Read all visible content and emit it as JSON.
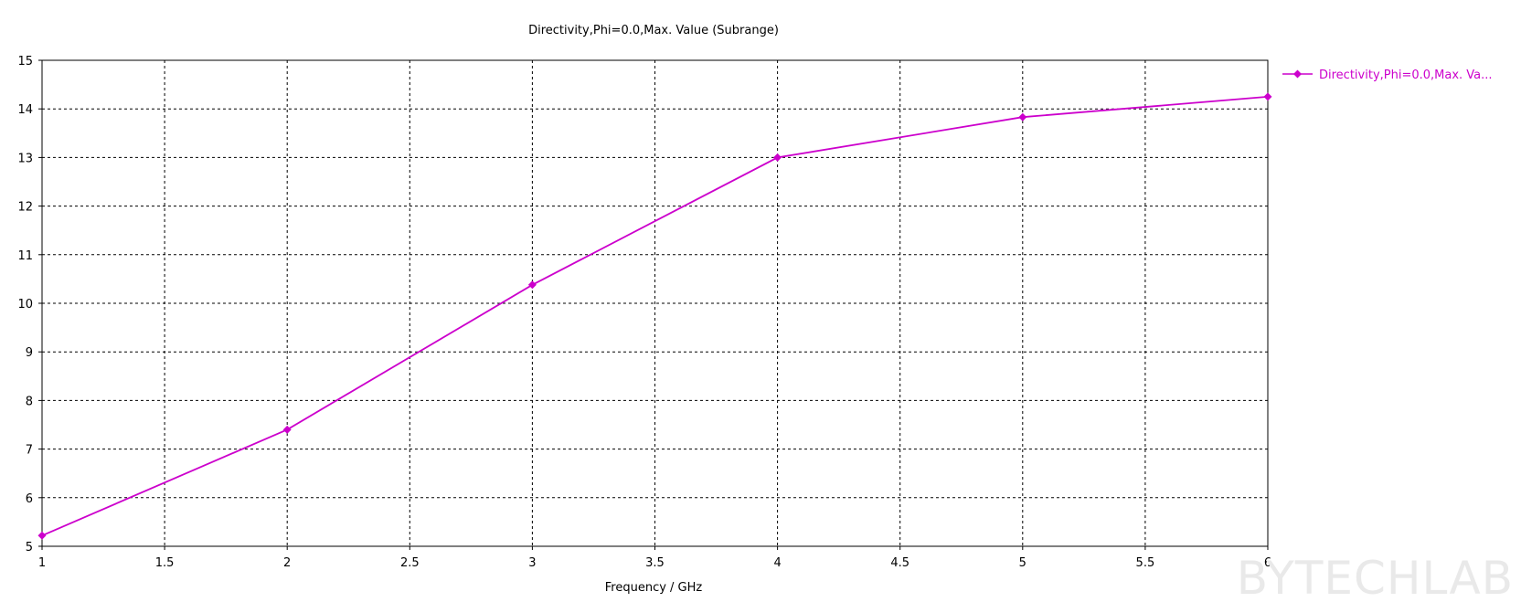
{
  "chart_data": {
    "type": "line",
    "title": "Directivity,Phi=0.0,Max. Value (Subrange)",
    "xlabel": "Frequency / GHz",
    "ylabel": "",
    "xlim": [
      1,
      6
    ],
    "ylim": [
      5,
      15
    ],
    "x_ticks": [
      "1",
      "1.5",
      "2",
      "2.5",
      "3",
      "3.5",
      "4",
      "4.5",
      "5",
      "5.5",
      "6"
    ],
    "y_ticks": [
      "5",
      "6",
      "7",
      "8",
      "9",
      "10",
      "11",
      "12",
      "13",
      "14",
      "15"
    ],
    "grid": true,
    "legend_position": "top-right, outside plot",
    "series": [
      {
        "name": "Directivity,Phi=0.0,Max. Va...",
        "color": "#cc00cc",
        "marker": "diamond",
        "x": [
          1,
          2,
          3,
          4,
          5,
          6
        ],
        "y": [
          5.22,
          7.4,
          10.38,
          13.0,
          13.83,
          14.25
        ]
      }
    ]
  },
  "watermark": "BYTECHLAB"
}
